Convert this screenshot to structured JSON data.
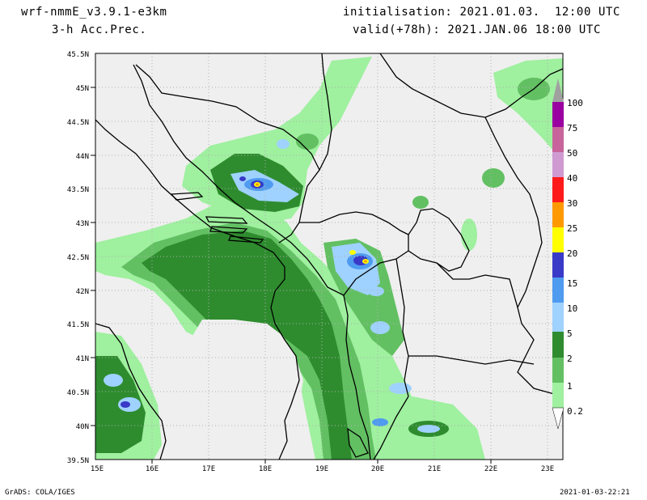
{
  "header": {
    "model": "wrf-nmmE_v3.9.1-e3km",
    "variable": "3-h Acc.Prec.",
    "init": "initialisation: 2021.01.03.  12:00 UTC",
    "valid": "valid(+78h): 2021.JAN.06 18:00 UTC"
  },
  "map": {
    "lat_labels": [
      "45.5N",
      "45N",
      "44.5N",
      "44N",
      "43.5N",
      "43N",
      "42.5N",
      "42N",
      "41.5N",
      "41N",
      "40.5N",
      "40N",
      "39.5N"
    ],
    "lon_labels": [
      "15E",
      "16E",
      "17E",
      "18E",
      "19E",
      "20E",
      "21E",
      "22E",
      "23E"
    ],
    "background_color": "#efefef"
  },
  "colorbar": {
    "levels": [
      {
        "label": "100",
        "color": "#a0a0a0"
      },
      {
        "label": "75",
        "color": "#9b00a0"
      },
      {
        "label": "50",
        "color": "#c8649b"
      },
      {
        "label": "40",
        "color": "#cf9ad2"
      },
      {
        "label": "30",
        "color": "#ff1a1a"
      },
      {
        "label": "25",
        "color": "#ff9900"
      },
      {
        "label": "20",
        "color": "#ffff00"
      },
      {
        "label": "15",
        "color": "#3a3ac8"
      },
      {
        "label": "10",
        "color": "#4f9bf0"
      },
      {
        "label": "5",
        "color": "#9fd2ff"
      },
      {
        "label": "2",
        "color": "#2e8c2e"
      },
      {
        "label": "1",
        "color": "#62c062"
      },
      {
        "label": "0.2",
        "color": "#9ff09f"
      }
    ]
  },
  "footer": {
    "left": "GrADS: COLA/IGES",
    "right": "2021-01-03-22:21"
  }
}
